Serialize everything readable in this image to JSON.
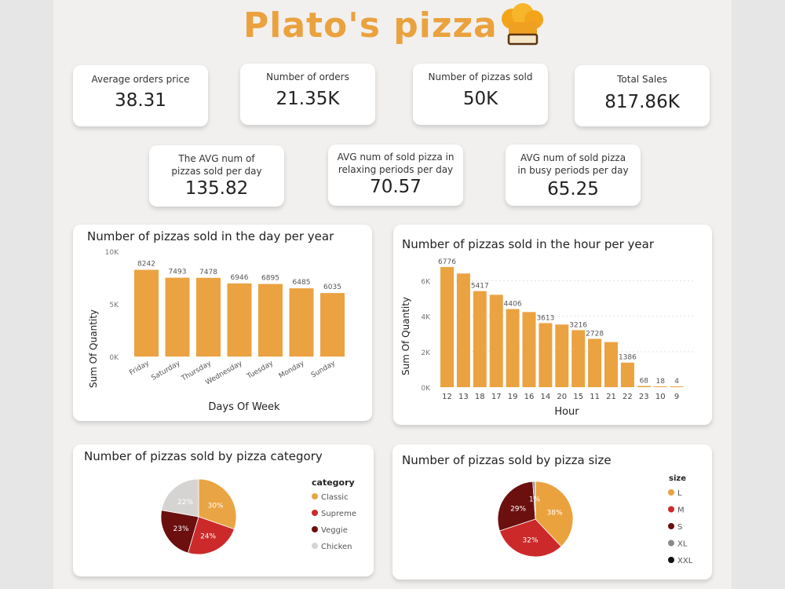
{
  "header": {
    "title": "Plato's pizza",
    "logo_icon": "chef-hat-icon"
  },
  "kpis_row1": [
    {
      "label": "Average orders price",
      "value": "38.31"
    },
    {
      "label": "Number of orders",
      "value": "21.35K"
    },
    {
      "label": "Number of pizzas sold",
      "value": "50K"
    },
    {
      "label": "Total Sales",
      "value": "817.86K"
    }
  ],
  "kpis_row2": [
    {
      "label": "The AVG num of pizzas sold per day",
      "value": "135.82"
    },
    {
      "label": "AVG num of sold pizza in relaxing periods per day",
      "value": "70.57"
    },
    {
      "label": "AVG num of sold pizza in busy periods per day",
      "value": "65.25"
    }
  ],
  "colors": {
    "accent": "#eaa23e",
    "bar": "#eba241",
    "classic": "#e9a444",
    "supreme": "#cc2a2a",
    "veggie": "#6b0f0f",
    "chicken": "#d6d3d3",
    "L": "#eaa23e",
    "M": "#cc2a2a",
    "S": "#6b0f0f",
    "XL": "#8a8a8a",
    "XXL": "#111111"
  },
  "chart_data": [
    {
      "type": "bar",
      "title": "Number of pizzas sold in the day per year",
      "xlabel": "Days Of Week",
      "ylabel": "Sum Of Quantity",
      "categories": [
        "Friday",
        "Saturday",
        "Thursday",
        "Wednesday",
        "Tuesday",
        "Monday",
        "Sunday"
      ],
      "values": [
        8242,
        7493,
        7478,
        6946,
        6895,
        6485,
        6035
      ],
      "ylim": [
        0,
        10000
      ],
      "yticks": [
        "0K",
        "5K",
        "10K"
      ]
    },
    {
      "type": "bar",
      "title": "Number of pizzas sold in the hour per year",
      "xlabel": "Hour",
      "ylabel": "Sum Of Quantity",
      "categories": [
        "12",
        "13",
        "18",
        "17",
        "19",
        "16",
        "14",
        "20",
        "15",
        "11",
        "21",
        "22",
        "23",
        "10",
        "9"
      ],
      "values": [
        6776,
        6413,
        5417,
        5211,
        4406,
        4239,
        3613,
        3534,
        3216,
        2728,
        2545,
        1386,
        68,
        18,
        4
      ],
      "labels": [
        "6776",
        "",
        "5417",
        "",
        "4406",
        "",
        "3613",
        "",
        "3216",
        "2728",
        "",
        "1386",
        "68",
        "18",
        "4"
      ],
      "ylim": [
        0,
        7000
      ],
      "yticks": [
        "0K",
        "2K",
        "4K",
        "6K"
      ]
    },
    {
      "type": "pie",
      "title": "Number of pizzas sold by pizza category",
      "legend_title": "category",
      "categories": [
        "Classic",
        "Supreme",
        "Veggie",
        "Chicken"
      ],
      "values": [
        30,
        24,
        23,
        22
      ],
      "labels": [
        "30%",
        "24%",
        "23%",
        "22%"
      ]
    },
    {
      "type": "pie",
      "title": "Number of pizzas sold by pizza size",
      "legend_title": "size",
      "categories": [
        "L",
        "M",
        "S",
        "XL",
        "XXL"
      ],
      "values": [
        38,
        32,
        29,
        1,
        0.1
      ],
      "labels": [
        "38%",
        "32%",
        "29%",
        "1%",
        ""
      ]
    }
  ]
}
